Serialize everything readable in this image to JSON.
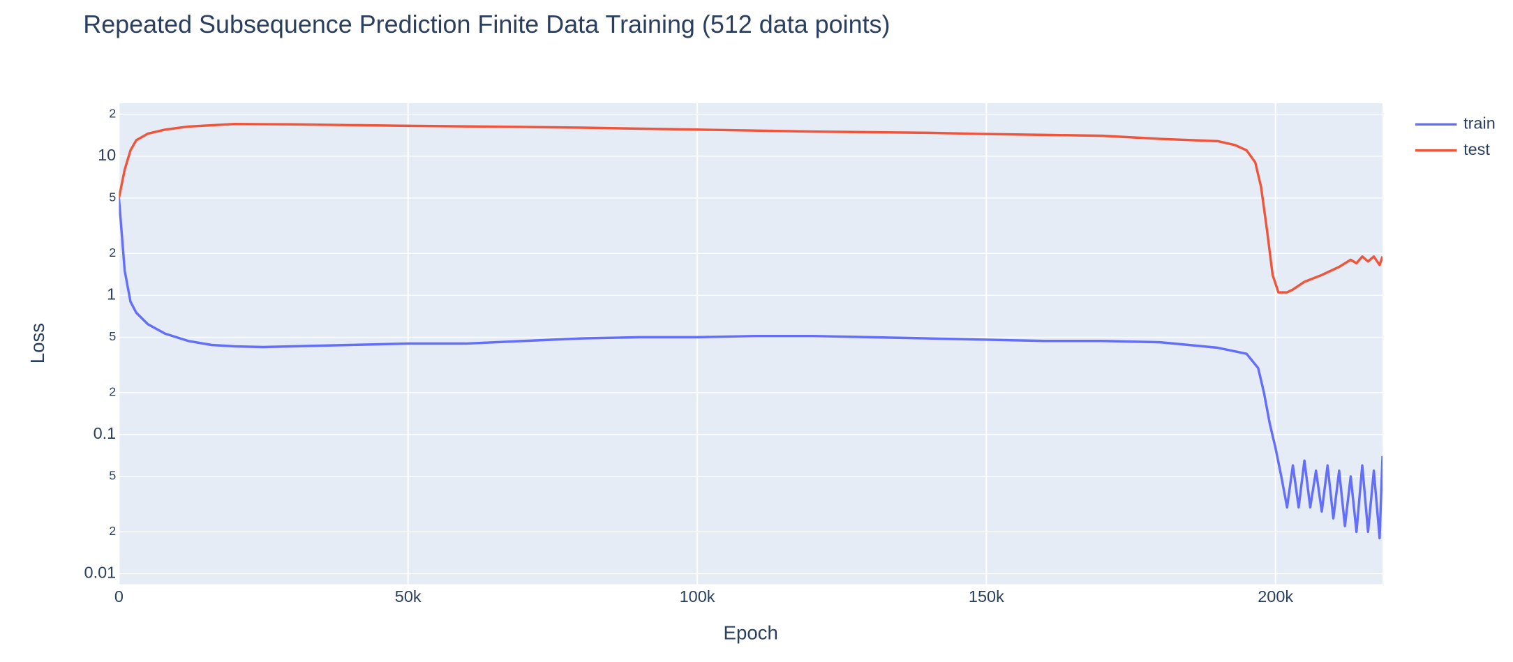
{
  "chart_data": {
    "type": "line",
    "title": "Repeated Subsequence Prediction Finite Data Training (512 data points)",
    "x_label": "Epoch",
    "y_label": "Loss",
    "log_y": true,
    "grid": true,
    "legend": "top-right-outside",
    "xlim": [
      0,
      218500
    ],
    "ylim": [
      0.0084,
      24
    ],
    "xticks": [
      0,
      {
        "value": 50000,
        "label": "50k"
      },
      {
        "value": 100000,
        "label": "100k"
      },
      {
        "value": 150000,
        "label": "150k"
      },
      {
        "value": 200000,
        "label": "200k"
      }
    ],
    "yticks": [
      0.01,
      {
        "value": 0.02,
        "label": "2"
      },
      {
        "value": 0.05,
        "label": "5"
      },
      0.1,
      {
        "value": 0.2,
        "label": "2"
      },
      {
        "value": 0.5,
        "label": "5"
      },
      1,
      {
        "value": 2,
        "label": "2"
      },
      {
        "value": 5,
        "label": "5"
      },
      10,
      {
        "value": 20,
        "label": "2"
      }
    ],
    "series": [
      {
        "name": "train",
        "color": "#636efa",
        "x": [
          0,
          1000,
          2000,
          3000,
          5000,
          8000,
          12000,
          16000,
          20000,
          25000,
          30000,
          40000,
          50000,
          60000,
          70000,
          80000,
          90000,
          100000,
          110000,
          120000,
          130000,
          140000,
          150000,
          160000,
          170000,
          180000,
          185000,
          190000,
          195000,
          197000,
          198000,
          199000,
          200000,
          201000,
          202000,
          203000,
          204000,
          205000,
          206000,
          207000,
          208000,
          209000,
          210000,
          211000,
          212000,
          213000,
          214000,
          215000,
          216000,
          217000,
          218000,
          218500
        ],
        "values": [
          5,
          1.5,
          0.9,
          0.75,
          0.62,
          0.53,
          0.47,
          0.44,
          0.43,
          0.425,
          0.43,
          0.44,
          0.45,
          0.45,
          0.47,
          0.49,
          0.5,
          0.5,
          0.51,
          0.51,
          0.5,
          0.49,
          0.48,
          0.47,
          0.47,
          0.46,
          0.44,
          0.42,
          0.38,
          0.3,
          0.2,
          0.12,
          0.08,
          0.05,
          0.03,
          0.06,
          0.03,
          0.065,
          0.03,
          0.055,
          0.028,
          0.06,
          0.025,
          0.055,
          0.022,
          0.05,
          0.02,
          0.06,
          0.02,
          0.055,
          0.018,
          0.07
        ]
      },
      {
        "name": "test",
        "color": "#EF553B",
        "x": [
          0,
          1000,
          2000,
          3000,
          5000,
          8000,
          12000,
          20000,
          30000,
          50000,
          70000,
          80000,
          100000,
          120000,
          140000,
          150000,
          160000,
          170000,
          180000,
          190000,
          193000,
          195000,
          196500,
          197500,
          198500,
          199500,
          200500,
          202000,
          203000,
          205000,
          208000,
          211000,
          213000,
          214000,
          215000,
          216000,
          217000,
          218000,
          218500
        ],
        "values": [
          5,
          8,
          11,
          13,
          14.5,
          15.5,
          16.3,
          17,
          16.9,
          16.5,
          16.2,
          16,
          15.5,
          15,
          14.7,
          14.4,
          14.2,
          14,
          13.3,
          12.8,
          12,
          11,
          9,
          6,
          3,
          1.4,
          1.05,
          1.05,
          1.1,
          1.25,
          1.4,
          1.6,
          1.8,
          1.7,
          1.9,
          1.75,
          1.9,
          1.65,
          1.9
        ]
      }
    ]
  }
}
